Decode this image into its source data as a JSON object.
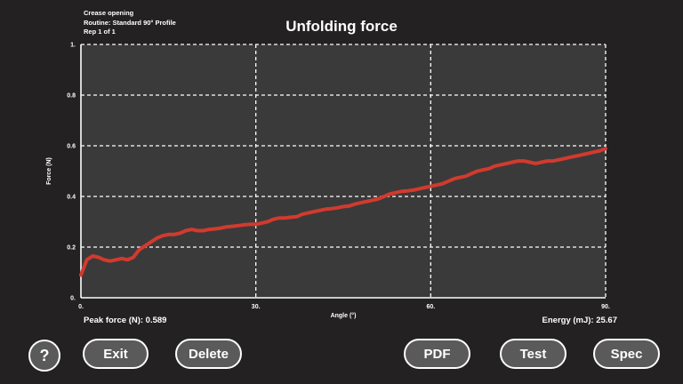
{
  "header": {
    "test_name": "Crease opening",
    "routine": "Routine: Standard 90° Profile",
    "rep": "Rep 1 of 1",
    "title": "Unfolding force"
  },
  "stats": {
    "peak_force": "Peak force (N): 0.589",
    "energy": "Energy (mJ): 25.67"
  },
  "buttons": {
    "help_icon": "?",
    "exit": "Exit",
    "delete": "Delete",
    "pdf": "PDF",
    "test": "Test",
    "spec": "Spec"
  },
  "colors": {
    "background": "#232121",
    "plot_background": "#3a3a3a",
    "line": "#d23a2e",
    "grid": "#ffffff",
    "button": "#5a5a5a"
  },
  "chart_data": {
    "type": "line",
    "title": "Unfolding force",
    "xlabel": "Angle (°)",
    "ylabel": "Force (N)",
    "xlim": [
      0,
      90
    ],
    "ylim": [
      0,
      1
    ],
    "x_ticks": [
      0,
      30,
      60,
      90
    ],
    "x_tick_labels": [
      "0.",
      "30.",
      "60.",
      "90."
    ],
    "y_ticks": [
      0,
      0.2,
      0.4,
      0.6,
      0.8,
      1.0
    ],
    "y_tick_labels": [
      "0.",
      "0.2",
      "0.4",
      "0.6",
      "0.8",
      "1."
    ],
    "grid": true,
    "series": [
      {
        "x": [
          0,
          1,
          2,
          3,
          4,
          5,
          6,
          7,
          8,
          9,
          10,
          11,
          12,
          13,
          14,
          15,
          16,
          17,
          18,
          19,
          20,
          21,
          22,
          23,
          24,
          25,
          26,
          27,
          28,
          29,
          30,
          31,
          32,
          33,
          34,
          35,
          36,
          37,
          38,
          39,
          40,
          41,
          42,
          43,
          44,
          45,
          46,
          47,
          48,
          49,
          50,
          51,
          52,
          53,
          54,
          55,
          56,
          57,
          58,
          59,
          60,
          61,
          62,
          63,
          64,
          65,
          66,
          67,
          68,
          69,
          70,
          71,
          72,
          73,
          74,
          75,
          76,
          77,
          78,
          79,
          80,
          81,
          82,
          83,
          84,
          85,
          86,
          87,
          88,
          89,
          90
        ],
        "y": [
          0.09,
          0.15,
          0.165,
          0.16,
          0.15,
          0.145,
          0.15,
          0.155,
          0.15,
          0.16,
          0.19,
          0.205,
          0.22,
          0.235,
          0.245,
          0.25,
          0.25,
          0.255,
          0.265,
          0.27,
          0.265,
          0.265,
          0.27,
          0.272,
          0.275,
          0.28,
          0.282,
          0.285,
          0.288,
          0.29,
          0.29,
          0.295,
          0.3,
          0.31,
          0.315,
          0.315,
          0.318,
          0.32,
          0.33,
          0.335,
          0.34,
          0.345,
          0.35,
          0.352,
          0.355,
          0.36,
          0.362,
          0.37,
          0.375,
          0.38,
          0.385,
          0.39,
          0.4,
          0.41,
          0.415,
          0.42,
          0.422,
          0.425,
          0.43,
          0.435,
          0.44,
          0.445,
          0.45,
          0.46,
          0.47,
          0.475,
          0.48,
          0.49,
          0.5,
          0.505,
          0.51,
          0.52,
          0.525,
          0.53,
          0.535,
          0.54,
          0.54,
          0.535,
          0.53,
          0.535,
          0.54,
          0.54,
          0.545,
          0.55,
          0.555,
          0.56,
          0.565,
          0.57,
          0.575,
          0.58,
          0.589
        ]
      }
    ]
  }
}
